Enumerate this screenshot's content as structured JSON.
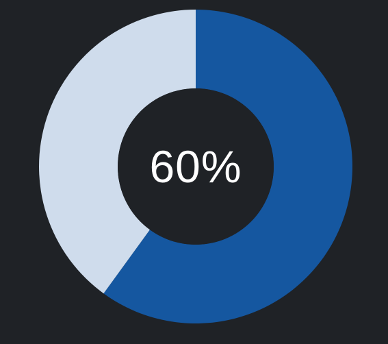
{
  "chart_data": {
    "type": "pie",
    "style": "donut",
    "slices": [
      {
        "value": 60,
        "color": "#1557a0"
      },
      {
        "value": 40,
        "color": "#cfdcec"
      }
    ],
    "center_label": "60%"
  },
  "colors": {
    "background": "#1f2226",
    "hole": "#1f2226",
    "label": "#ffffff"
  }
}
